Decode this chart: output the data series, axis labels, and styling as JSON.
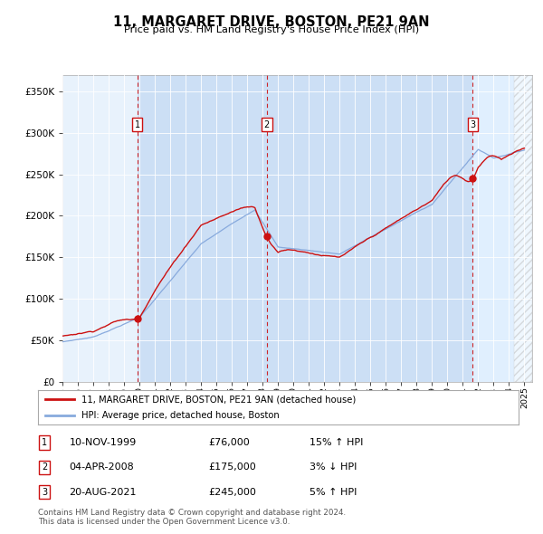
{
  "title": "11, MARGARET DRIVE, BOSTON, PE21 9AN",
  "subtitle": "Price paid vs. HM Land Registry's House Price Index (HPI)",
  "sale_color": "#cc1111",
  "hpi_color": "#88aadd",
  "bg_color_light": "#ddeeff",
  "bg_color_sale": "#ccddf0",
  "grid_color": "#cccccc",
  "sale_dates_num": [
    1999.86,
    2008.27,
    2021.64
  ],
  "sale_prices": [
    76000,
    175000,
    245000
  ],
  "yticks": [
    0,
    50000,
    100000,
    150000,
    200000,
    250000,
    300000,
    350000
  ],
  "ytick_labels": [
    "£0",
    "£50K",
    "£100K",
    "£150K",
    "£200K",
    "£250K",
    "£300K",
    "£350K"
  ],
  "xmin": 1995.0,
  "xmax": 2025.5,
  "ymin": 0,
  "ymax": 370000,
  "legend_sale_label": "11, MARGARET DRIVE, BOSTON, PE21 9AN (detached house)",
  "legend_hpi_label": "HPI: Average price, detached house, Boston",
  "table_rows": [
    {
      "num": "1",
      "date": "10-NOV-1999",
      "price": "£76,000",
      "pct": "15%",
      "dir": "↑"
    },
    {
      "num": "2",
      "date": "04-APR-2008",
      "price": "£175,000",
      "pct": "3%",
      "dir": "↓"
    },
    {
      "num": "3",
      "date": "20-AUG-2021",
      "price": "£245,000",
      "pct": "5%",
      "dir": "↑"
    }
  ],
  "footer": "Contains HM Land Registry data © Crown copyright and database right 2024.\nThis data is licensed under the Open Government Licence v3.0."
}
